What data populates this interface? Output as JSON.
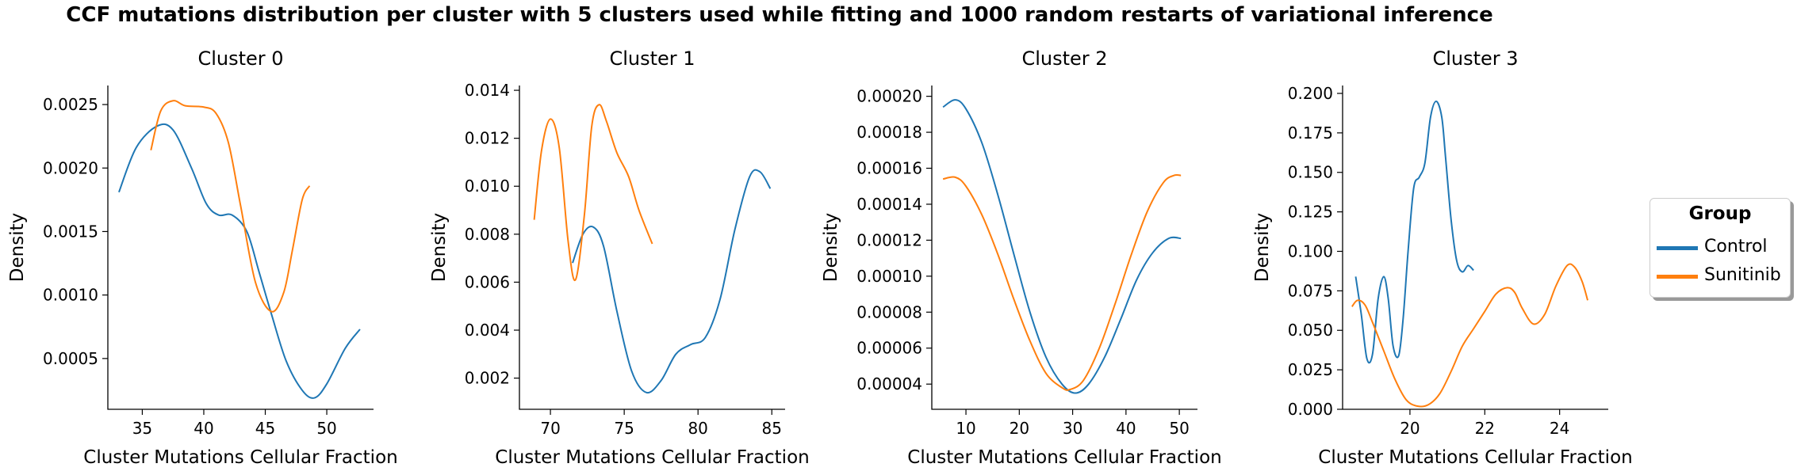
{
  "suptitle": "CCF mutations distribution per cluster with 5 clusters used while fitting and 1000 random restarts of variational inference",
  "legend": {
    "title": "Group",
    "items": [
      {
        "label": "Control",
        "color": "#1f77b4"
      },
      {
        "label": "Sunitinib",
        "color": "#ff7f0e"
      }
    ]
  },
  "chart_data": [
    {
      "type": "line",
      "title": "Cluster 0",
      "xlabel": "Cluster Mutations Cellular Fraction",
      "ylabel": "Density",
      "xlim": [
        32.2,
        53.8
      ],
      "ylim": [
        0.0001,
        0.00265
      ],
      "xticks": [
        35,
        40,
        45,
        50
      ],
      "yticks": [
        0.0005,
        0.001,
        0.0015,
        0.002,
        0.0025
      ],
      "ytick_labels": [
        "0.0005",
        "0.0010",
        "0.0015",
        "0.0020",
        "0.0025"
      ],
      "series": [
        {
          "name": "Control",
          "color": "#1f77b4",
          "x": [
            33.1,
            34.5,
            36.2,
            37.5,
            39.0,
            40.2,
            41.2,
            42.3,
            43.5,
            44.5,
            45.5,
            46.7,
            48.0,
            49.0,
            50.0,
            51.5,
            52.7
          ],
          "y": [
            0.00181,
            0.00216,
            0.00233,
            0.0023,
            0.002,
            0.00172,
            0.00163,
            0.00163,
            0.0015,
            0.00118,
            0.00085,
            0.00048,
            0.00025,
            0.00019,
            0.0003,
            0.00058,
            0.00073
          ]
        },
        {
          "name": "Sunitinib",
          "color": "#ff7f0e",
          "x": [
            35.7,
            36.5,
            37.5,
            38.5,
            40.0,
            41.0,
            42.0,
            43.0,
            44.2,
            45.5,
            46.5,
            47.2,
            48.0,
            48.6
          ],
          "y": [
            0.00214,
            0.00245,
            0.00253,
            0.00249,
            0.00248,
            0.00243,
            0.0022,
            0.0017,
            0.0011,
            0.00087,
            0.00102,
            0.00135,
            0.00175,
            0.00186
          ]
        }
      ]
    },
    {
      "type": "line",
      "title": "Cluster 1",
      "xlabel": "Cluster Mutations Cellular Fraction",
      "ylabel": "Density",
      "xlim": [
        67.9,
        85.9
      ],
      "ylim": [
        0.0007,
        0.0142
      ],
      "xticks": [
        70,
        75,
        80,
        85
      ],
      "yticks": [
        0.002,
        0.004,
        0.006,
        0.008,
        0.01,
        0.012,
        0.014
      ],
      "ytick_labels": [
        "0.002",
        "0.004",
        "0.006",
        "0.008",
        "0.010",
        "0.012",
        "0.014"
      ],
      "series": [
        {
          "name": "Control",
          "color": "#1f77b4",
          "x": [
            71.5,
            72.2,
            72.9,
            73.6,
            74.5,
            75.5,
            76.5,
            77.5,
            78.5,
            79.5,
            80.5,
            81.5,
            82.5,
            83.5,
            84.2,
            84.9
          ],
          "y": [
            0.0068,
            0.008,
            0.0083,
            0.0075,
            0.0048,
            0.0023,
            0.0014,
            0.0019,
            0.003,
            0.0034,
            0.0037,
            0.0053,
            0.0082,
            0.0104,
            0.0106,
            0.0099
          ]
        },
        {
          "name": "Sunitinib",
          "color": "#ff7f0e",
          "x": [
            68.9,
            69.4,
            70.0,
            70.6,
            71.2,
            71.7,
            72.3,
            72.8,
            73.3,
            73.8,
            74.5,
            75.3,
            76.0,
            76.9
          ],
          "y": [
            0.0086,
            0.0115,
            0.0128,
            0.0116,
            0.0077,
            0.0061,
            0.0088,
            0.0125,
            0.0134,
            0.0127,
            0.0114,
            0.0104,
            0.009,
            0.0076
          ]
        }
      ]
    },
    {
      "type": "line",
      "title": "Cluster 2",
      "xlabel": "Cluster Mutations Cellular Fraction",
      "ylabel": "Density",
      "xlim": [
        3.6,
        53.4
      ],
      "ylim": [
        2.6e-05,
        0.000206
      ],
      "xticks": [
        10,
        20,
        30,
        40,
        50
      ],
      "yticks": [
        4e-05,
        6e-05,
        8e-05,
        0.0001,
        0.00012,
        0.00014,
        0.00016,
        0.00018,
        0.0002
      ],
      "ytick_labels": [
        "0.00004",
        "0.00006",
        "0.00008",
        "0.00010",
        "0.00012",
        "0.00014",
        "0.00016",
        "0.00018",
        "0.00020"
      ],
      "series": [
        {
          "name": "Control",
          "color": "#1f77b4",
          "x": [
            5.7,
            8.0,
            10.0,
            13.0,
            16.0,
            19.0,
            22.0,
            25.0,
            28.0,
            30.5,
            33.0,
            36.0,
            39.0,
            42.0,
            45.0,
            48.0,
            50.3
          ],
          "y": [
            0.000194,
            0.000198,
            0.000193,
            0.000174,
            0.000145,
            0.000112,
            8e-05,
            5.5e-05,
            4e-05,
            3.5e-05,
            4e-05,
            5.5e-05,
            7.6e-05,
            9.8e-05,
            0.000113,
            0.000121,
            0.000121
          ]
        },
        {
          "name": "Sunitinib",
          "color": "#ff7f0e",
          "x": [
            5.7,
            8.0,
            10.0,
            13.0,
            16.0,
            19.0,
            22.0,
            25.0,
            28.0,
            29.5,
            32.0,
            35.0,
            38.0,
            41.0,
            44.0,
            47.0,
            49.0,
            50.3
          ],
          "y": [
            0.000154,
            0.000155,
            0.00015,
            0.000134,
            0.000112,
            8.7e-05,
            6.4e-05,
            4.6e-05,
            3.8e-05,
            3.7e-05,
            4.2e-05,
            6e-05,
            8.5e-05,
            0.000112,
            0.000136,
            0.000152,
            0.000156,
            0.000156
          ]
        }
      ]
    },
    {
      "type": "line",
      "title": "Cluster 3",
      "xlabel": "Cluster Mutations Cellular Fraction",
      "ylabel": "Density",
      "xlim": [
        18.2,
        25.3
      ],
      "ylim": [
        0,
        0.205
      ],
      "xticks": [
        20,
        22,
        24
      ],
      "yticks": [
        0,
        0.025,
        0.05,
        0.075,
        0.1,
        0.125,
        0.15,
        0.175,
        0.2
      ],
      "ytick_labels": [
        "0.000",
        "0.025",
        "0.050",
        "0.075",
        "0.100",
        "0.125",
        "0.150",
        "0.175",
        "0.200"
      ],
      "series": [
        {
          "name": "Control",
          "color": "#1f77b4",
          "x": [
            18.55,
            18.7,
            18.85,
            19.0,
            19.15,
            19.3,
            19.42,
            19.55,
            19.7,
            19.82,
            19.95,
            20.1,
            20.25,
            20.4,
            20.55,
            20.7,
            20.85,
            20.95,
            21.1,
            21.25,
            21.4,
            21.55,
            21.7
          ],
          "y": [
            0.084,
            0.06,
            0.032,
            0.035,
            0.07,
            0.084,
            0.07,
            0.04,
            0.034,
            0.058,
            0.1,
            0.14,
            0.147,
            0.156,
            0.185,
            0.195,
            0.185,
            0.16,
            0.12,
            0.094,
            0.087,
            0.091,
            0.088
          ]
        },
        {
          "name": "Sunitinib",
          "color": "#ff7f0e",
          "x": [
            18.45,
            18.6,
            18.8,
            19.0,
            19.3,
            19.6,
            19.9,
            20.2,
            20.5,
            20.8,
            21.1,
            21.4,
            21.7,
            22.0,
            22.3,
            22.6,
            22.8,
            23.0,
            23.3,
            23.6,
            23.9,
            24.2,
            24.4,
            24.6,
            24.75
          ],
          "y": [
            0.065,
            0.069,
            0.066,
            0.055,
            0.037,
            0.019,
            0.006,
            0.002,
            0.003,
            0.01,
            0.024,
            0.04,
            0.051,
            0.062,
            0.073,
            0.077,
            0.074,
            0.064,
            0.054,
            0.06,
            0.078,
            0.091,
            0.09,
            0.081,
            0.069
          ]
        }
      ]
    }
  ]
}
